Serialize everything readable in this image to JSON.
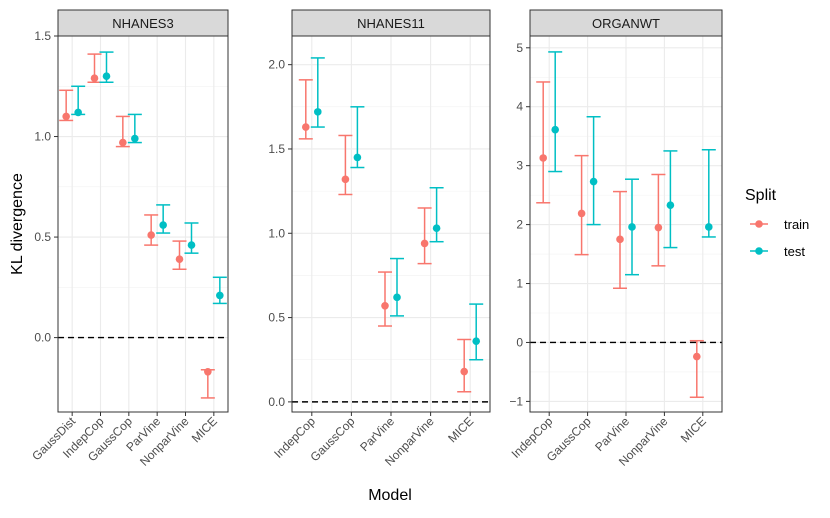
{
  "chart_data": {
    "type": "errorbar",
    "xlabel": "Model",
    "ylabel": "KL divergence",
    "legend": {
      "title": "Split",
      "position": "right",
      "items": [
        {
          "name": "train",
          "color": "#F8766D"
        },
        {
          "name": "test",
          "color": "#00BFC4"
        }
      ]
    },
    "panels": [
      {
        "title": "NHANES3",
        "categories": [
          "GaussDist",
          "IndepCop",
          "GaussCop",
          "ParVine",
          "NonparVine",
          "MICE"
        ],
        "ylim": [
          -0.37,
          1.5
        ],
        "yticks": [
          0.0,
          0.5,
          1.0,
          1.5
        ],
        "ytick_labels": [
          "0.0",
          "0.5",
          "1.0",
          "1.5"
        ],
        "reference_line": 0,
        "series": [
          {
            "name": "train",
            "values": [
              1.1,
              1.29,
              0.97,
              0.51,
              0.39,
              -0.17
            ],
            "lower": [
              1.08,
              1.27,
              0.95,
              0.46,
              0.34,
              -0.3
            ],
            "upper": [
              1.23,
              1.41,
              1.1,
              0.61,
              0.48,
              -0.16
            ]
          },
          {
            "name": "test",
            "values": [
              1.12,
              1.3,
              0.99,
              0.56,
              0.46,
              0.21
            ],
            "lower": [
              1.11,
              1.27,
              0.97,
              0.52,
              0.42,
              0.17
            ],
            "upper": [
              1.25,
              1.42,
              1.11,
              0.66,
              0.57,
              0.3
            ]
          }
        ]
      },
      {
        "title": "NHANES11",
        "categories": [
          "IndepCop",
          "GaussCop",
          "ParVine",
          "NonparVine",
          "MICE"
        ],
        "ylim": [
          -0.06,
          2.17
        ],
        "yticks": [
          0.0,
          0.5,
          1.0,
          1.5,
          2.0
        ],
        "ytick_labels": [
          "0.0",
          "0.5",
          "1.0",
          "1.5",
          "2.0"
        ],
        "reference_line": 0,
        "series": [
          {
            "name": "train",
            "values": [
              1.63,
              1.32,
              0.57,
              0.94,
              0.18
            ],
            "lower": [
              1.56,
              1.23,
              0.45,
              0.82,
              0.06
            ],
            "upper": [
              1.91,
              1.58,
              0.77,
              1.15,
              0.37
            ]
          },
          {
            "name": "test",
            "values": [
              1.72,
              1.45,
              0.62,
              1.03,
              0.36
            ],
            "lower": [
              1.63,
              1.39,
              0.51,
              0.95,
              0.25
            ],
            "upper": [
              2.04,
              1.75,
              0.85,
              1.27,
              0.58
            ]
          }
        ]
      },
      {
        "title": "ORGANWT",
        "categories": [
          "IndepCop",
          "GaussCop",
          "ParVine",
          "NonparVine",
          "MICE"
        ],
        "ylim": [
          -1.18,
          5.2
        ],
        "yticks": [
          -1,
          0,
          1,
          2,
          3,
          4,
          5
        ],
        "ytick_labels": [
          "−1",
          "0",
          "1",
          "2",
          "3",
          "4",
          "5"
        ],
        "reference_line": 0,
        "series": [
          {
            "name": "train",
            "values": [
              3.13,
              2.19,
              1.75,
              1.95,
              -0.24
            ],
            "lower": [
              2.37,
              1.49,
              0.92,
              1.3,
              -0.93
            ],
            "upper": [
              4.42,
              3.17,
              2.56,
              2.85,
              0.03
            ]
          },
          {
            "name": "test",
            "values": [
              3.61,
              2.73,
              1.96,
              2.33,
              1.96
            ],
            "lower": [
              2.9,
              2.0,
              1.15,
              1.61,
              1.79
            ],
            "upper": [
              4.93,
              3.83,
              2.77,
              3.25,
              3.27
            ]
          }
        ]
      }
    ]
  }
}
